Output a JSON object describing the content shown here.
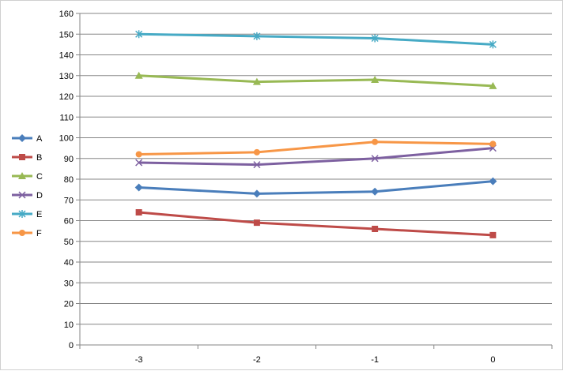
{
  "chart_data": {
    "type": "line",
    "title": "",
    "xlabel": "",
    "ylabel": "",
    "x": [
      "-3",
      "-2",
      "-1",
      "0"
    ],
    "ylim": [
      0,
      160
    ],
    "yticks": [
      0,
      10,
      20,
      30,
      40,
      50,
      60,
      70,
      80,
      90,
      100,
      110,
      120,
      130,
      140,
      150,
      160
    ],
    "grid": "horizontal",
    "legend_position": "left",
    "series": [
      {
        "name": "A",
        "values": [
          76,
          73,
          74,
          79
        ],
        "color": "#4A7EBB",
        "marker": "diamond"
      },
      {
        "name": "B",
        "values": [
          64,
          59,
          56,
          53
        ],
        "color": "#BE4B48",
        "marker": "square"
      },
      {
        "name": "C",
        "values": [
          130,
          127,
          128,
          125
        ],
        "color": "#98B954",
        "marker": "triangle"
      },
      {
        "name": "D",
        "values": [
          88,
          87,
          90,
          95
        ],
        "color": "#7D60A0",
        "marker": "x"
      },
      {
        "name": "E",
        "values": [
          150,
          149,
          148,
          145
        ],
        "color": "#46AAC5",
        "marker": "star"
      },
      {
        "name": "F",
        "values": [
          92,
          93,
          98,
          97
        ],
        "color": "#F79646",
        "marker": "circle"
      }
    ]
  }
}
